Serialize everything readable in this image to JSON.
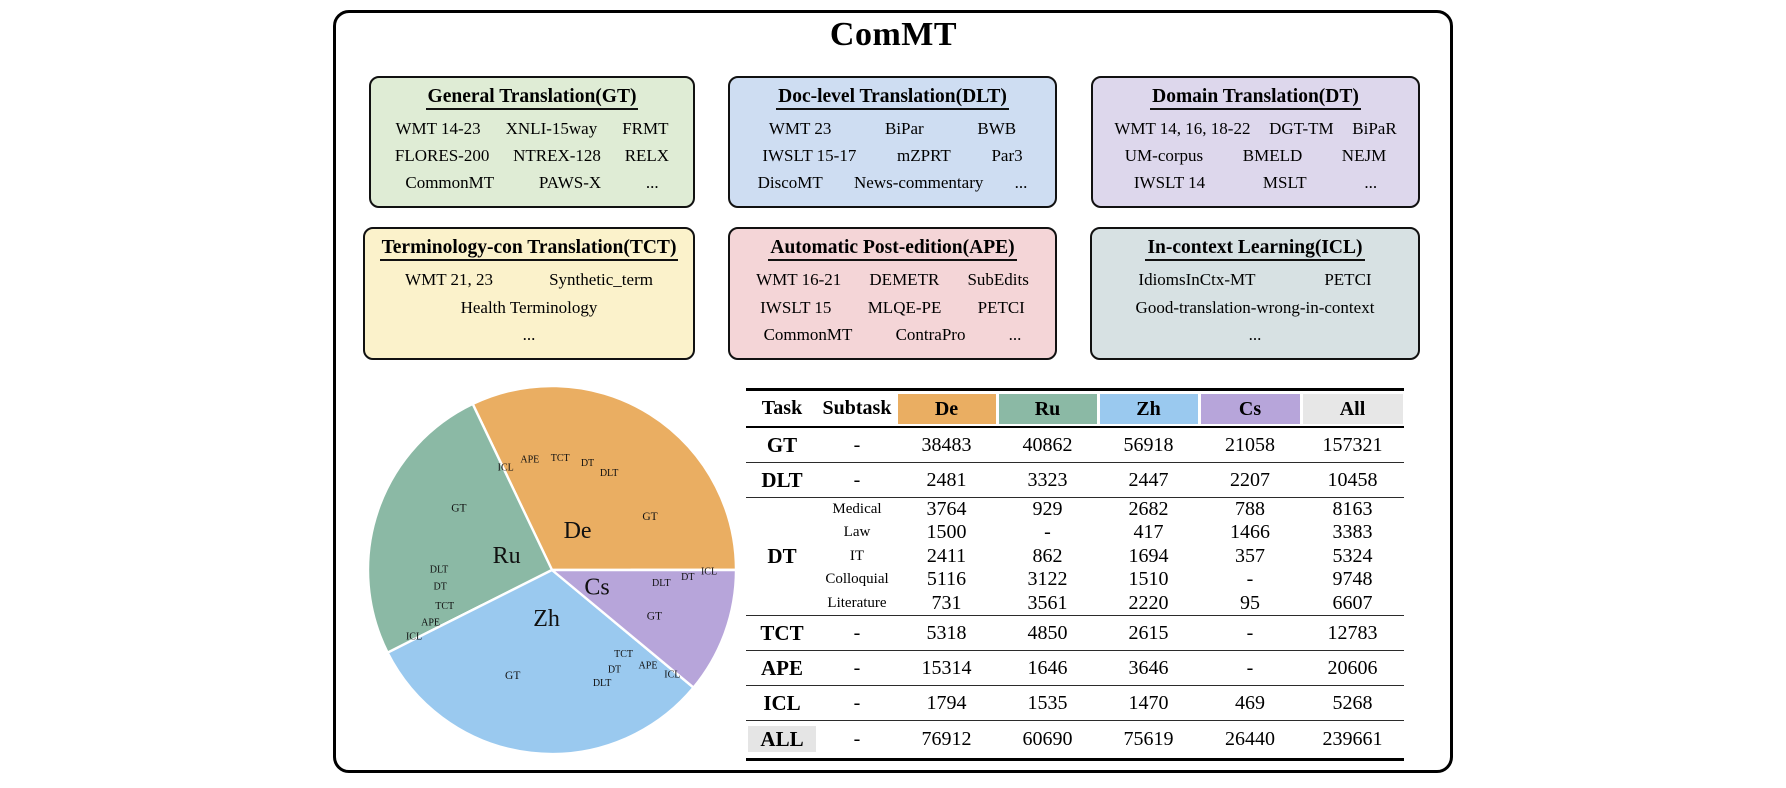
{
  "title": "ComMT",
  "task_boxes": [
    {
      "id": "gt",
      "title": "General Translation(GT)",
      "bg": "#DFECD5",
      "rows": [
        [
          "WMT 14-23",
          "XNLI-15way",
          "FRMT"
        ],
        [
          "FLORES-200",
          "NTREX-128",
          "RELX"
        ],
        [
          "CommonMT",
          "PAWS-X",
          "..."
        ]
      ]
    },
    {
      "id": "dlt",
      "title": "Doc-level Translation(DLT)",
      "bg": "#CEDDF2",
      "rows": [
        [
          "WMT 23",
          "BiPar",
          "BWB"
        ],
        [
          "IWSLT 15-17",
          "mZPRT",
          "Par3"
        ],
        [
          "DiscoMT",
          "News-commentary",
          "..."
        ]
      ]
    },
    {
      "id": "dt",
      "title": "Domain Translation(DT)",
      "bg": "#DDD7EC",
      "rows": [
        [
          "WMT 14, 16, 18-22",
          "DGT-TM",
          "BiPaR"
        ],
        [
          "UM-corpus",
          "BMELD",
          "NEJM"
        ],
        [
          "IWSLT 14",
          "MSLT",
          "..."
        ]
      ]
    },
    {
      "id": "tct",
      "title": "Terminology-con Translation(TCT)",
      "bg": "#FBF2CB",
      "rows": [
        [
          "WMT 21, 23",
          "Synthetic_term"
        ],
        [
          "Health Terminology"
        ],
        [
          "..."
        ]
      ]
    },
    {
      "id": "ape",
      "title": "Automatic Post-edition(APE)",
      "bg": "#F4D5D7",
      "rows": [
        [
          "WMT 16-21",
          "DEMETR",
          "SubEdits"
        ],
        [
          "IWSLT 15",
          "MLQE-PE",
          "PETCI"
        ],
        [
          "CommonMT",
          "ContraPro",
          "..."
        ]
      ]
    },
    {
      "id": "icl",
      "title": "In-context Learning(ICL)",
      "bg": "#D7E1E3",
      "rows": [
        [
          "IdiomsInCtx-MT",
          "PETCI"
        ],
        [
          "Good-translation-wrong-in-context"
        ],
        [
          "..."
        ]
      ]
    }
  ],
  "chart_data": {
    "type": "sunburst",
    "title": "ComMT language/task distribution",
    "direction": "counterclockwise",
    "start_angle_deg": 0,
    "total": 239661,
    "inner_ring": [
      {
        "label": "De",
        "value": 76912,
        "color": "#EAAE62"
      },
      {
        "label": "Ru",
        "value": 60690,
        "color": "#8BB9A5"
      },
      {
        "label": "Zh",
        "value": 75619,
        "color": "#9AC9EF"
      },
      {
        "label": "Cs",
        "value": 26440,
        "color": "#B7A5DA"
      }
    ],
    "outer_ring_order": [
      "GT",
      "DLT",
      "DT",
      "TCT",
      "APE",
      "ICL"
    ],
    "outer_ring": {
      "De": {
        "GT": 38483,
        "DLT": 2481,
        "DT": 13522,
        "TCT": 5318,
        "APE": 15314,
        "ICL": 1794
      },
      "Ru": {
        "GT": 40862,
        "DLT": 3323,
        "DT": 8474,
        "TCT": 4850,
        "APE": 1646,
        "ICL": 1535
      },
      "Zh": {
        "GT": 56918,
        "DLT": 2447,
        "DT": 8523,
        "TCT": 2615,
        "APE": 3646,
        "ICL": 1470
      },
      "Cs": {
        "GT": 21058,
        "DLT": 2207,
        "DT": 2706,
        "ICL": 469
      }
    }
  },
  "table": {
    "headers": [
      "Task",
      "Subtask",
      "De",
      "Ru",
      "Zh",
      "Cs",
      "All"
    ],
    "header_colors": {
      "De": "#EAAE62",
      "Ru": "#8BB9A5",
      "Zh": "#9AC9EF",
      "Cs": "#B7A5DA",
      "All": "#E7E7E7"
    },
    "rows": [
      {
        "task": "GT",
        "sub": [
          "-"
        ],
        "vals": [
          [
            "38483",
            "40862",
            "56918",
            "21058",
            "157321"
          ]
        ]
      },
      {
        "task": "DLT",
        "sub": [
          "-"
        ],
        "vals": [
          [
            "2481",
            "3323",
            "2447",
            "2207",
            "10458"
          ]
        ]
      },
      {
        "task": "DT",
        "sub": [
          "Medical",
          "Law",
          "IT",
          "Colloquial",
          "Literature"
        ],
        "vals": [
          [
            "3764",
            "929",
            "2682",
            "788",
            "8163"
          ],
          [
            "1500",
            "-",
            "417",
            "1466",
            "3383"
          ],
          [
            "2411",
            "862",
            "1694",
            "357",
            "5324"
          ],
          [
            "5116",
            "3122",
            "1510",
            "-",
            "9748"
          ],
          [
            "731",
            "3561",
            "2220",
            "95",
            "6607"
          ]
        ]
      },
      {
        "task": "TCT",
        "sub": [
          "-"
        ],
        "vals": [
          [
            "5318",
            "4850",
            "2615",
            "-",
            "12783"
          ]
        ]
      },
      {
        "task": "APE",
        "sub": [
          "-"
        ],
        "vals": [
          [
            "15314",
            "1646",
            "3646",
            "-",
            "20606"
          ]
        ]
      },
      {
        "task": "ICL",
        "sub": [
          "-"
        ],
        "vals": [
          [
            "1794",
            "1535",
            "1470",
            "469",
            "5268"
          ]
        ]
      },
      {
        "task": "ALL",
        "sub": [
          "-"
        ],
        "vals": [
          [
            "76912",
            "60690",
            "75619",
            "26440",
            "239661"
          ]
        ],
        "highlight": true
      }
    ]
  }
}
